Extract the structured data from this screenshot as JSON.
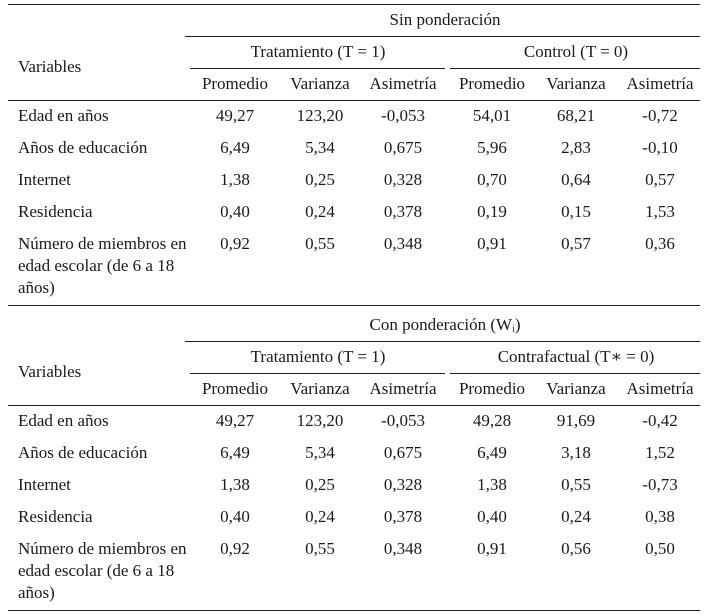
{
  "panels": [
    {
      "title": "Sin ponderación",
      "variables_label": "Variables",
      "groups": [
        "Tratamiento (T = 1)",
        "Control (T = 0)"
      ],
      "columns": [
        "Promedio",
        "Varianza",
        "Asimetría",
        "Promedio",
        "Varianza",
        "Asimetría"
      ],
      "rows": [
        {
          "label": "Edad en años",
          "values": [
            "49,27",
            "123,20",
            "-0,053",
            "54,01",
            "68,21",
            "-0,72"
          ]
        },
        {
          "label": "Años de educación",
          "values": [
            "6,49",
            "5,34",
            "0,675",
            "5,96",
            "2,83",
            "-0,10"
          ]
        },
        {
          "label": "Internet",
          "values": [
            "1,38",
            "0,25",
            "0,328",
            "0,70",
            "0,64",
            "0,57"
          ]
        },
        {
          "label": "Residencia",
          "values": [
            "0,40",
            "0,24",
            "0,378",
            "0,19",
            "0,15",
            "1,53"
          ]
        },
        {
          "label": "Número de miembros en edad escolar (de 6 a 18 años)",
          "values": [
            "0,92",
            "0,55",
            "0,348",
            "0,91",
            "0,57",
            "0,36"
          ]
        }
      ]
    },
    {
      "title": "Con ponderación (Wᵢ)",
      "variables_label": "Variables",
      "groups": [
        "Tratamiento (T = 1)",
        "Contrafactual (T∗ = 0)"
      ],
      "columns": [
        "Promedio",
        "Varianza",
        "Asimetría",
        "Promedio",
        "Varianza",
        "Asimetría"
      ],
      "rows": [
        {
          "label": "Edad en años",
          "values": [
            "49,27",
            "123,20",
            "-0,053",
            "49,28",
            "91,69",
            "-0,42"
          ]
        },
        {
          "label": "Años de educación",
          "values": [
            "6,49",
            "5,34",
            "0,675",
            "6,49",
            "3,18",
            "1,52"
          ]
        },
        {
          "label": "Internet",
          "values": [
            "1,38",
            "0,25",
            "0,328",
            "1,38",
            "0,55",
            "-0,73"
          ]
        },
        {
          "label": "Residencia",
          "values": [
            "0,40",
            "0,24",
            "0,378",
            "0,40",
            "0,24",
            "0,38"
          ]
        },
        {
          "label": "Número de miembros en edad escolar (de 6 a 18 años)",
          "values": [
            "0,92",
            "0,55",
            "0,348",
            "0,91",
            "0,56",
            "0,50"
          ]
        }
      ]
    }
  ]
}
